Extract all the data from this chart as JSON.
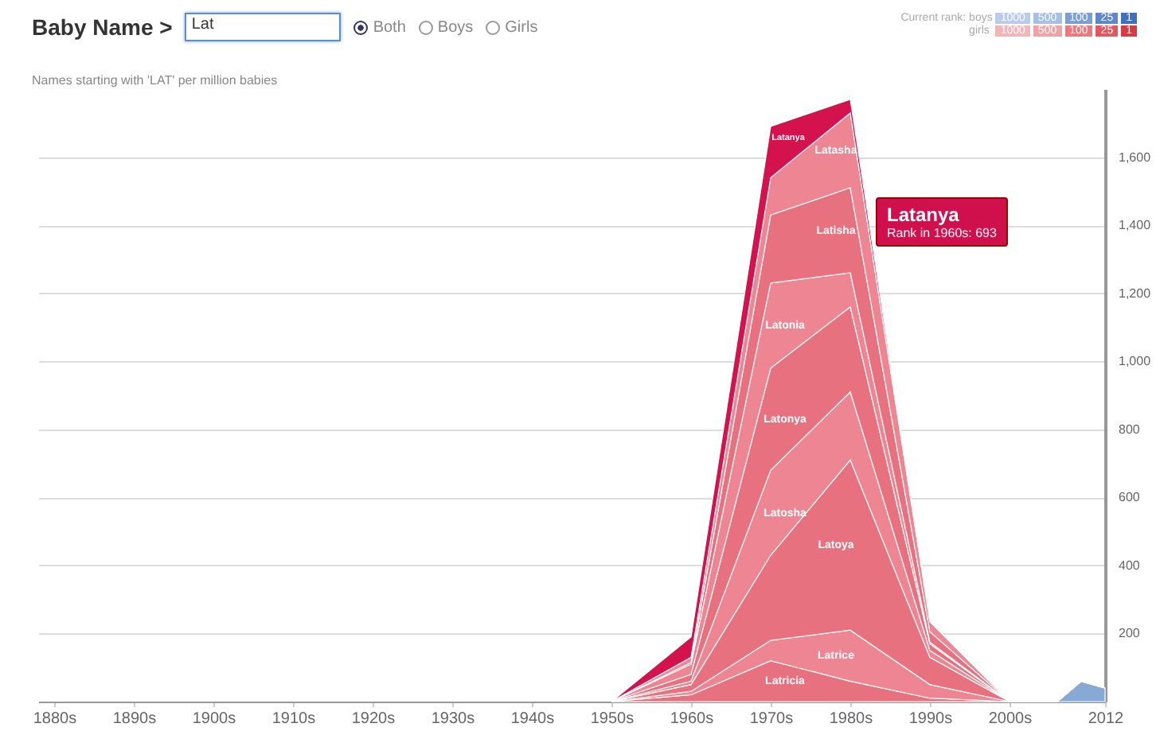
{
  "chart_data": {
    "type": "area",
    "stacked": true,
    "subtitle": "Names starting with 'LAT' per million babies",
    "annotations": [
      "Baby Name >",
      "Lat",
      "Both",
      "Boys",
      "Girls",
      "Current rank:",
      "boys",
      "girls",
      "1000",
      "500",
      "100",
      "25",
      "1",
      "Latanya",
      "Rank in 1960s: 693"
    ],
    "x": [
      1950,
      1960,
      1970,
      1980,
      1990,
      2000,
      2006,
      2009,
      2012
    ],
    "series": [
      {
        "color": "#86a9d6",
        "values": [
          0,
          0,
          0,
          0,
          0,
          0,
          0,
          60,
          40
        ]
      },
      {
        "name": "Latricia",
        "color": "#e8717f",
        "values": [
          0,
          20,
          120,
          60,
          10,
          0,
          0,
          0,
          0
        ]
      },
      {
        "name": "Latrice",
        "color": "#ed8592",
        "values": [
          0,
          10,
          60,
          150,
          40,
          0,
          0,
          0,
          0
        ]
      },
      {
        "name": "Latoya",
        "color": "#e8717f",
        "values": [
          0,
          20,
          250,
          500,
          80,
          0,
          0,
          0,
          0
        ]
      },
      {
        "name": "Latosha",
        "color": "#ed8592",
        "values": [
          0,
          10,
          250,
          200,
          20,
          0,
          0,
          0,
          0
        ]
      },
      {
        "name": "Latonya",
        "color": "#e8717f",
        "values": [
          0,
          20,
          300,
          250,
          20,
          0,
          0,
          0,
          0
        ]
      },
      {
        "name": "Latonia",
        "color": "#ed8592",
        "values": [
          0,
          30,
          250,
          100,
          5,
          0,
          0,
          0,
          0
        ]
      },
      {
        "name": "Latisha",
        "color": "#e8717f",
        "values": [
          0,
          5,
          200,
          250,
          30,
          0,
          0,
          0,
          0
        ]
      },
      {
        "name": "Latasha",
        "color": "#ed8592",
        "values": [
          0,
          15,
          110,
          220,
          30,
          0,
          0,
          0,
          0
        ]
      },
      {
        "name": "Latanya",
        "color": "#d3124e",
        "values": [
          0,
          60,
          150,
          40,
          0,
          0,
          0,
          0,
          0
        ]
      }
    ],
    "xlim": [
      1878,
      2012
    ],
    "xticks": [
      {
        "value": 1880,
        "label": "1880s"
      },
      {
        "value": 1890,
        "label": "1890s"
      },
      {
        "value": 1900,
        "label": "1900s"
      },
      {
        "value": 1910,
        "label": "1910s"
      },
      {
        "value": 1920,
        "label": "1920s"
      },
      {
        "value": 1930,
        "label": "1930s"
      },
      {
        "value": 1940,
        "label": "1940s"
      },
      {
        "value": 1950,
        "label": "1950s"
      },
      {
        "value": 1960,
        "label": "1960s"
      },
      {
        "value": 1970,
        "label": "1970s"
      },
      {
        "value": 1980,
        "label": "1980s"
      },
      {
        "value": 1990,
        "label": "1990s"
      },
      {
        "value": 2000,
        "label": "2000s"
      },
      2012
    ],
    "ylim": [
      0,
      1800
    ],
    "yticks": [
      200,
      400,
      600,
      800,
      {
        "value": 1000,
        "label": "1,000"
      },
      {
        "value": 1200,
        "label": "1,200"
      },
      {
        "value": 1400,
        "label": "1,400"
      },
      {
        "value": 1600,
        "label": "1,600"
      }
    ],
    "grid": "y",
    "legend": false
  }
}
